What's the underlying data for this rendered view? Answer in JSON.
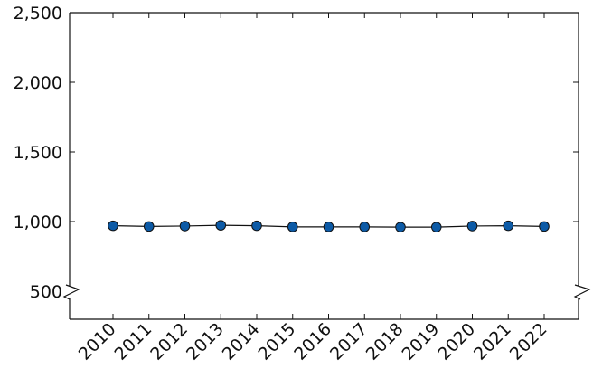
{
  "chart_data": {
    "type": "line",
    "title": "",
    "xlabel": "",
    "ylabel": "",
    "categories": [
      "2010",
      "2011",
      "2012",
      "2013",
      "2014",
      "2015",
      "2016",
      "2017",
      "2018",
      "2019",
      "2020",
      "2021",
      "2022"
    ],
    "series": [
      {
        "values": [
          970,
          965,
          968,
          973,
          970,
          962,
          962,
          962,
          960,
          960,
          968,
          970,
          965
        ]
      }
    ],
    "ylim": [
      500,
      2500
    ],
    "y_ticks": [
      500,
      1000,
      1500,
      2000,
      2500
    ],
    "y_tick_labels": [
      "500",
      "1,000",
      "1,500",
      "2,000",
      "2,500"
    ],
    "y_axis_break": true,
    "grid": false,
    "legend": "none",
    "colors": {
      "marker_fill": "#0c5aa6",
      "line": "#111111"
    }
  }
}
